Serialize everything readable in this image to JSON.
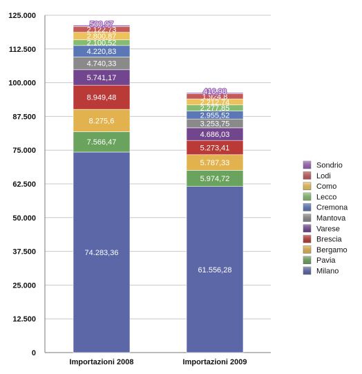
{
  "chart_data": {
    "type": "bar",
    "stacked": true,
    "categories": [
      "Importazioni 2008",
      "Importazioni 2009"
    ],
    "series": [
      {
        "name": "Milano",
        "color": "#5b67a6",
        "values": [
          74283.36,
          61556.28
        ],
        "labels": [
          "74.283,36",
          "61.556,28"
        ]
      },
      {
        "name": "Pavia",
        "color": "#6aa35e",
        "values": [
          7566.47,
          5974.72
        ],
        "labels": [
          "7.566,47",
          "5.974,72"
        ]
      },
      {
        "name": "Bergamo",
        "color": "#e2b24f",
        "values": [
          8275.6,
          5787.33
        ],
        "labels": [
          "8.275,6",
          "5.787,33"
        ]
      },
      {
        "name": "Brescia",
        "color": "#b93a36",
        "values": [
          8949.48,
          5273.41
        ],
        "labels": [
          "8.949,48",
          "5.273,41"
        ]
      },
      {
        "name": "Varese",
        "color": "#72468f",
        "values": [
          5741.17,
          4686.03
        ],
        "labels": [
          "5.741,17",
          "4.686,03"
        ]
      },
      {
        "name": "Mantova",
        "color": "#8a8a8a",
        "values": [
          4740.33,
          3253.75
        ],
        "labels": [
          "4.740,33",
          "3.253,75"
        ]
      },
      {
        "name": "Cremona",
        "color": "#5b77b5",
        "values": [
          4220.83,
          2955.52
        ],
        "labels": [
          "4.220,83",
          "2.955,52"
        ]
      },
      {
        "name": "Lecco",
        "color": "#86bc72",
        "values": [
          2100.52,
          2277.85
        ],
        "labels": [
          "2.100,52",
          "2.277,85"
        ]
      },
      {
        "name": "Como",
        "color": "#edc25c",
        "values": [
          2800.87,
          2212.74
        ],
        "labels": [
          "2.800,87",
          "2.212,74"
        ]
      },
      {
        "name": "Lodi",
        "color": "#c45a55",
        "values": [
          2122.73,
          1924.8
        ],
        "labels": [
          "2.122,73",
          "1.924,8"
        ]
      },
      {
        "name": "Sondrio",
        "color": "#9a62b8",
        "values": [
          500.97,
          416.98
        ],
        "labels": [
          "500,97",
          "416,98"
        ]
      }
    ],
    "ylim": [
      0,
      125000
    ],
    "yticks": [
      0,
      12500,
      25000,
      37500,
      50000,
      62500,
      75000,
      87500,
      100000,
      112500,
      125000
    ],
    "ytick_labels": [
      "0",
      "12.500",
      "25.000",
      "37.500",
      "50.000",
      "62.500",
      "75.000",
      "87.500",
      "100.000",
      "112.500",
      "125.000"
    ],
    "grid": true,
    "legend": "right",
    "title": "",
    "xlabel": "",
    "ylabel": ""
  }
}
